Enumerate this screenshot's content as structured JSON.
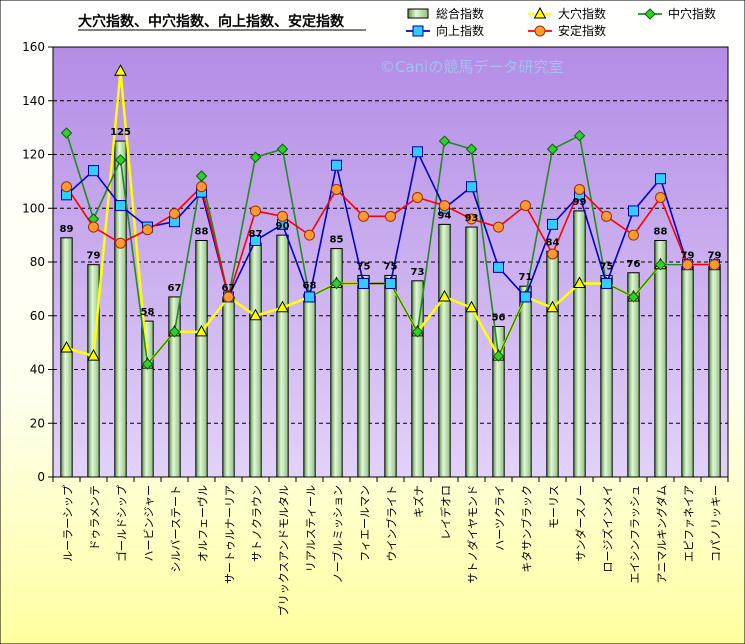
{
  "chart_data": {
    "type": "bar",
    "title": "大穴指数、中穴指数、向上指数、安定指数",
    "watermark": "©Caniの競馬データ研究室",
    "ylim": [
      0,
      160
    ],
    "yticks": [
      "0",
      "20",
      "40",
      "60",
      "80",
      "100",
      "120",
      "140",
      "160"
    ],
    "categories": [
      "ルーラーシップ",
      "ドゥラメンテ",
      "ゴールドシップ",
      "ハービンジャー",
      "シルバーステート",
      "オルフェーヴル",
      "サートゥルナーリア",
      "サトノクラウン",
      "ブリックスアンドモルタル",
      "リアルスティール",
      "ノーブルミッション",
      "フィエールマン",
      "ウインブライト",
      "キズナ",
      "レイデオロ",
      "サトノダイヤモンド",
      "ハーツクライ",
      "キタサンブラック",
      "モーリス",
      "サンダースノー",
      "ロージズインメイ",
      "エイシンフラッシュ",
      "アニマルキングダム",
      "エピファネイア",
      "コパノリッキー"
    ],
    "series": [
      {
        "name": "総合指数",
        "kind": "bar",
        "color": "#b8e0a8",
        "values": [
          89,
          79,
          125,
          58,
          67,
          88,
          67,
          87,
          90,
          68,
          85,
          75,
          75,
          73,
          94,
          93,
          56,
          71,
          84,
          99,
          75,
          76,
          88,
          79,
          79
        ],
        "labels": [
          "89",
          "79",
          "125",
          "58",
          "67",
          "88",
          "67",
          "87",
          "90",
          "68",
          "85",
          "75",
          "75",
          "73",
          "94",
          "93",
          "56",
          "71",
          "84",
          "99",
          "75",
          "76",
          "88",
          "79",
          "79"
        ]
      },
      {
        "name": "大穴指数",
        "kind": "line",
        "color": "#ffff00",
        "marker": "triangle",
        "values": [
          48,
          45,
          151,
          42,
          54,
          54,
          67,
          60,
          63,
          67,
          72,
          72,
          72,
          54,
          67,
          63,
          45,
          67,
          63,
          72,
          72,
          67,
          79,
          79,
          79
        ]
      },
      {
        "name": "中穴指数",
        "kind": "line",
        "color": "#228b22",
        "marker": "diamond",
        "values": [
          128,
          96,
          118,
          42,
          54,
          112,
          67,
          119,
          122,
          67,
          72,
          72,
          72,
          54,
          125,
          122,
          45,
          67,
          122,
          127,
          72,
          67,
          79,
          79,
          79
        ]
      },
      {
        "name": "向上指数",
        "kind": "line",
        "color": "#0000cc",
        "marker": "square",
        "values": [
          105,
          114,
          101,
          93,
          95,
          106,
          67,
          88,
          94,
          67,
          116,
          72,
          72,
          121,
          100,
          108,
          78,
          67,
          94,
          105,
          72,
          99,
          111,
          79,
          79
        ]
      },
      {
        "name": "安定指数",
        "kind": "line",
        "color": "#ff0000",
        "marker": "circle",
        "values": [
          108,
          93,
          87,
          92,
          98,
          108,
          67,
          99,
          97,
          90,
          107,
          97,
          97,
          104,
          101,
          96,
          93,
          101,
          83,
          107,
          97,
          90,
          104,
          79,
          79
        ]
      }
    ],
    "legend_position": "top-right",
    "grid": true
  }
}
